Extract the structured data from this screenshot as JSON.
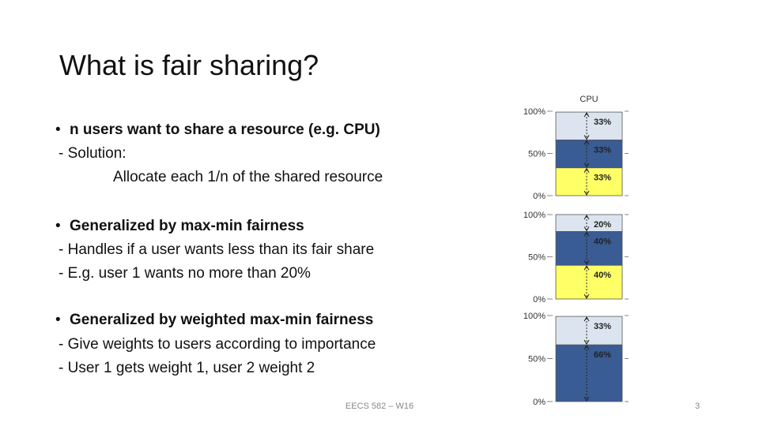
{
  "title": "What is fair sharing?",
  "bullets": [
    {
      "text": "n users want to share a resource (e.g. CPU)",
      "sub": [
        "- Solution:",
        "Allocate each 1/n of the shared resource"
      ]
    },
    {
      "text": "Generalized by max-min fairness",
      "sub": [
        "- Handles if a user wants less than its fair share",
        "- E.g. user 1 wants no more than 20%"
      ]
    },
    {
      "text": "Generalized by weighted max-min fairness",
      "sub": [
        "- Give weights to users according to importance",
        "- User 1 gets weight 1, user 2 weight 2"
      ]
    }
  ],
  "footer": "EECS 582 – W16",
  "page_number": "3",
  "charts": [
    {
      "type": "stacked-bar",
      "title": "CPU",
      "ylim": [
        0,
        100
      ],
      "yticks": [
        {
          "value": 0,
          "label": "0%"
        },
        {
          "value": 50,
          "label": "50%"
        },
        {
          "value": 100,
          "label": "100%"
        }
      ],
      "values": [
        33,
        33,
        33
      ],
      "value_labels": [
        "33%",
        "33%",
        "33%"
      ],
      "colors": [
        "#ffff66",
        "#3a5c94",
        "#dce5ef"
      ]
    },
    {
      "type": "stacked-bar",
      "ylim": [
        0,
        100
      ],
      "yticks": [
        {
          "value": 0,
          "label": "0%"
        },
        {
          "value": 50,
          "label": "50%"
        },
        {
          "value": 100,
          "label": "100%"
        }
      ],
      "values": [
        40,
        40,
        20
      ],
      "value_labels": [
        "40%",
        "40%",
        "20%"
      ],
      "colors": [
        "#ffff66",
        "#3a5c94",
        "#dce5ef"
      ]
    },
    {
      "type": "stacked-bar",
      "ylim": [
        0,
        100
      ],
      "yticks": [
        {
          "value": 0,
          "label": "0%"
        },
        {
          "value": 50,
          "label": "50%"
        },
        {
          "value": 100,
          "label": "100%"
        }
      ],
      "values": [
        66,
        33
      ],
      "value_labels": [
        "66%",
        "33%"
      ],
      "colors": [
        "#3a5c94",
        "#dce5ef"
      ]
    }
  ]
}
